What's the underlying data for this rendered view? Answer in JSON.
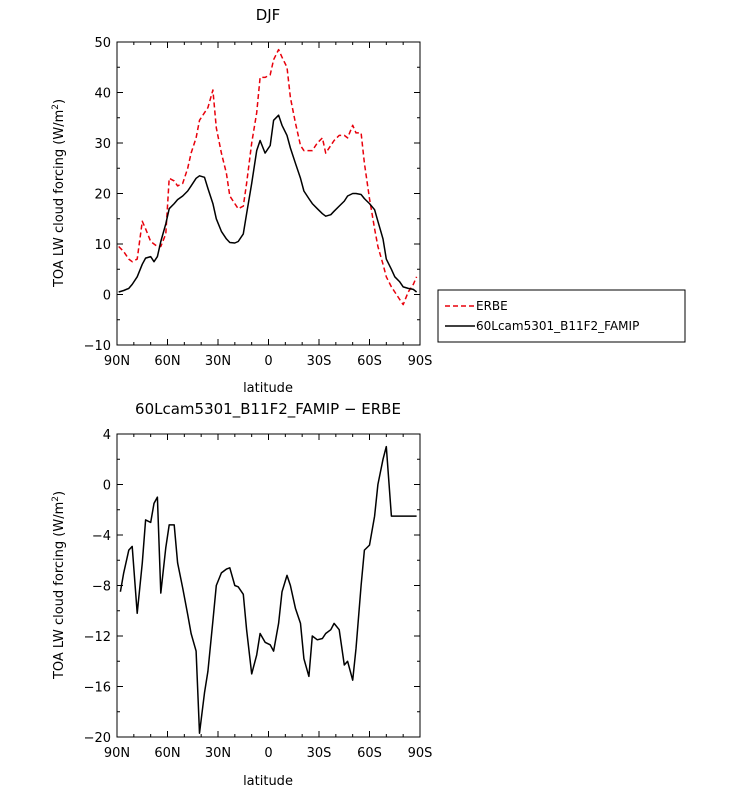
{
  "chart_data": [
    {
      "type": "line",
      "title": "DJF",
      "xlabel": "latitude",
      "ylabel": "TOA LW cloud forcing (W/m",
      "ylabel_sup": "2",
      "ylabel_close": ")",
      "ylim": [
        -10,
        50
      ],
      "yticks": [
        "50",
        "40",
        "30",
        "20",
        "10",
        "0",
        "−10"
      ],
      "ytick_values": [
        50,
        40,
        30,
        20,
        10,
        0,
        -10
      ],
      "xlim": [
        90,
        -90
      ],
      "xticks": [
        "90N",
        "60N",
        "30N",
        "0",
        "30S",
        "60S",
        "90S"
      ],
      "xtick_values": [
        90,
        60,
        30,
        0,
        -30,
        -60,
        -90
      ],
      "legend": [
        "ERBE",
        "60Lcam5301_B11F2_FAMIP"
      ],
      "series": [
        {
          "name": "ERBE",
          "color": "#e8000b",
          "style": "dashed",
          "x": [
            89,
            86,
            83,
            81,
            78,
            75,
            73,
            70,
            68,
            66,
            64,
            61,
            59,
            56,
            54,
            51,
            48,
            46,
            43,
            41,
            38,
            36,
            33,
            31,
            28,
            25,
            23,
            20,
            18,
            15,
            13,
            10,
            7,
            5,
            2,
            -1,
            -3,
            -6,
            -8,
            -11,
            -13,
            -16,
            -19,
            -21,
            -24,
            -26,
            -29,
            -32,
            -34,
            -37,
            -39,
            -42,
            -45,
            -47,
            -50,
            -52,
            -55,
            -57,
            -60,
            -63,
            -65,
            -68,
            -70,
            -73,
            -75,
            -78,
            -80,
            -83,
            -86,
            -88
          ],
          "y": [
            9.5,
            8.5,
            7.0,
            6.5,
            7.0,
            14.5,
            13.0,
            10.5,
            10.0,
            9.5,
            9.5,
            12.0,
            23.0,
            22.5,
            21.5,
            22.0,
            25.0,
            28.0,
            31.0,
            34.5,
            36.0,
            37.0,
            40.5,
            33.0,
            28.0,
            24.0,
            19.5,
            18.0,
            17.0,
            17.5,
            22.0,
            30.0,
            36.0,
            43.0,
            43.0,
            43.5,
            46.5,
            48.5,
            47.0,
            45.0,
            39.0,
            34.0,
            29.5,
            28.5,
            28.5,
            28.5,
            30.0,
            31.0,
            28.0,
            29.5,
            30.5,
            31.5,
            31.5,
            31.0,
            33.5,
            32.0,
            32.0,
            26.0,
            19.0,
            13.0,
            9.5,
            6.0,
            3.5,
            1.5,
            0.5,
            -1.0,
            -2.0,
            0.5,
            2.0,
            3.5
          ]
        },
        {
          "name": "60Lcam5301_B11F2_FAMIP",
          "color": "#000000",
          "style": "solid",
          "x": [
            89,
            86,
            83,
            81,
            78,
            75,
            73,
            70,
            68,
            66,
            64,
            61,
            59,
            56,
            54,
            51,
            48,
            46,
            43,
            41,
            38,
            36,
            33,
            31,
            28,
            25,
            23,
            20,
            18,
            15,
            13,
            10,
            7,
            5,
            2,
            -1,
            -3,
            -6,
            -8,
            -11,
            -13,
            -16,
            -19,
            -21,
            -24,
            -26,
            -29,
            -32,
            -34,
            -37,
            -39,
            -42,
            -45,
            -47,
            -50,
            -52,
            -55,
            -57,
            -60,
            -63,
            -65,
            -68,
            -70,
            -73,
            -75,
            -78,
            -80,
            -83,
            -86,
            -88
          ],
          "y": [
            0.5,
            0.8,
            1.2,
            2.0,
            3.5,
            6.0,
            7.2,
            7.5,
            6.5,
            7.5,
            10.5,
            14.0,
            17.0,
            18.0,
            18.8,
            19.5,
            20.5,
            21.5,
            23.0,
            23.5,
            23.2,
            21.0,
            18.0,
            15.0,
            12.5,
            11.0,
            10.3,
            10.2,
            10.5,
            12.0,
            16.0,
            22.0,
            28.5,
            30.5,
            28.0,
            29.5,
            34.5,
            35.5,
            33.5,
            31.5,
            29.0,
            26.0,
            23.0,
            20.5,
            19.0,
            18.0,
            17.0,
            16.0,
            15.5,
            15.8,
            16.5,
            17.5,
            18.5,
            19.5,
            20.0,
            20.0,
            19.8,
            19.0,
            18.0,
            16.8,
            14.5,
            11.0,
            7.0,
            5.0,
            3.5,
            2.5,
            1.5,
            1.2,
            1.0,
            0.5
          ]
        }
      ]
    },
    {
      "type": "line",
      "title": "60Lcam5301_B11F2_FAMIP − ERBE",
      "xlabel": "latitude",
      "ylabel": "TOA LW cloud forcing (W/m",
      "ylabel_sup": "2",
      "ylabel_close": ")",
      "ylim": [
        -20,
        4
      ],
      "yticks": [
        "4",
        "0",
        "−4",
        "−8",
        "−12",
        "−16",
        "−20"
      ],
      "ytick_values": [
        4,
        0,
        -4,
        -8,
        -12,
        -16,
        -20
      ],
      "xlim": [
        90,
        -90
      ],
      "xticks": [
        "90N",
        "60N",
        "30N",
        "0",
        "30S",
        "60S",
        "90S"
      ],
      "xtick_values": [
        90,
        60,
        30,
        0,
        -30,
        -60,
        -90
      ],
      "series": [
        {
          "name": "60Lcam5301_B11F2_FAMIP − ERBE",
          "color": "#000000",
          "style": "solid",
          "x": [
            88,
            86,
            83,
            81,
            78,
            75,
            73,
            70,
            68,
            66,
            64,
            61,
            59,
            56,
            54,
            51,
            48,
            46,
            43,
            41,
            38,
            36,
            33,
            31,
            28,
            25,
            23,
            20,
            18,
            15,
            13,
            10,
            7,
            5,
            2,
            -1,
            -3,
            -6,
            -8,
            -11,
            -13,
            -16,
            -19,
            -21,
            -24,
            -26,
            -29,
            -32,
            -34,
            -37,
            -39,
            -42,
            -45,
            -47,
            -50,
            -52,
            -55,
            -57,
            -60,
            -63,
            -65,
            -68,
            -70,
            -73,
            -75,
            -78,
            -80,
            -83,
            -86,
            -88
          ],
          "y": [
            -8.5,
            -7.0,
            -5.2,
            -4.9,
            -10.2,
            -6.2,
            -2.8,
            -3.0,
            -1.5,
            -1.0,
            -8.6,
            -5.0,
            -3.2,
            -3.2,
            -6.2,
            -8.2,
            -10.3,
            -11.8,
            -13.2,
            -19.7,
            -16.5,
            -14.8,
            -10.8,
            -8.0,
            -7.0,
            -6.7,
            -6.6,
            -8.0,
            -8.1,
            -8.7,
            -11.5,
            -15.0,
            -13.5,
            -11.8,
            -12.5,
            -12.7,
            -13.2,
            -11.0,
            -8.5,
            -7.2,
            -8.0,
            -9.8,
            -11.0,
            -13.8,
            -15.2,
            -12.0,
            -12.3,
            -12.2,
            -11.8,
            -11.5,
            -11.0,
            -11.5,
            -14.3,
            -14.0,
            -15.5,
            -13.0,
            -8.0,
            -5.2,
            -4.8,
            -2.5,
            0.0,
            2.0,
            3.0,
            -2.5,
            -2.5,
            -2.5,
            -2.5,
            -2.5,
            -2.5,
            -2.5
          ]
        }
      ]
    }
  ]
}
